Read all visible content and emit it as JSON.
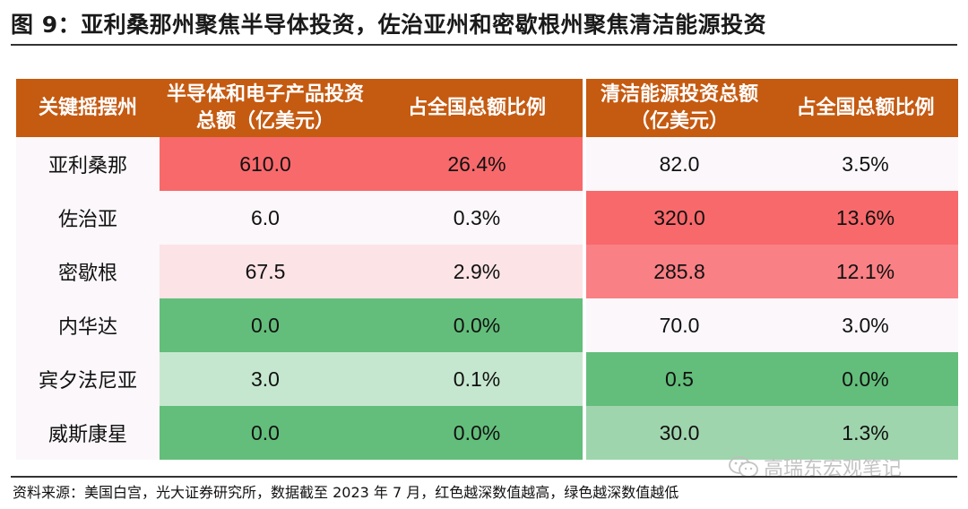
{
  "title": "图 9：亚利桑那州聚焦半导体投资，佐治亚州和密歇根州聚焦清洁能源投资",
  "headers": [
    "关键摇摆州",
    "半导体和电子产品投资总额（亿美元）",
    "占全国总额比例",
    "清洁能源投资总额（亿美元）",
    "占全国总额比例"
  ],
  "rows": [
    {
      "state": "亚利桑那",
      "semi": "610.0",
      "semi_pct": "26.4%",
      "clean": "82.0",
      "clean_pct": "3.5%"
    },
    {
      "state": "佐治亚",
      "semi": "6.0",
      "semi_pct": "0.3%",
      "clean": "320.0",
      "clean_pct": "13.6%"
    },
    {
      "state": "密歇根",
      "semi": "67.5",
      "semi_pct": "2.9%",
      "clean": "285.8",
      "clean_pct": "12.1%"
    },
    {
      "state": "内华达",
      "semi": "0.0",
      "semi_pct": "0.0%",
      "clean": "70.0",
      "clean_pct": "3.0%"
    },
    {
      "state": "宾夕法尼亚",
      "semi": "3.0",
      "semi_pct": "0.1%",
      "clean": "0.5",
      "clean_pct": "0.0%"
    },
    {
      "state": "威斯康星",
      "semi": "0.0",
      "semi_pct": "0.0%",
      "clean": "30.0",
      "clean_pct": "1.3%"
    }
  ],
  "cell_colors": {
    "semi": [
      "#f8696b",
      "#fbf7fa",
      "#fbe3e6",
      "#63be7b",
      "#c6e7cf",
      "#63be7b"
    ],
    "clean": [
      "#fbf7fa",
      "#f8696b",
      "#f98085",
      "#fbf7fa",
      "#63be7b",
      "#9fd5ad"
    ]
  },
  "state_bg": "#fbf7fa",
  "source": "资料来源：美国白宫，光大证券研究所，数据截至 2023 年 7 月，红色越深数值越高，绿色越深数值越低",
  "watermark": "高瑞东宏观笔记",
  "watermark_icon": "wechat-icon"
}
